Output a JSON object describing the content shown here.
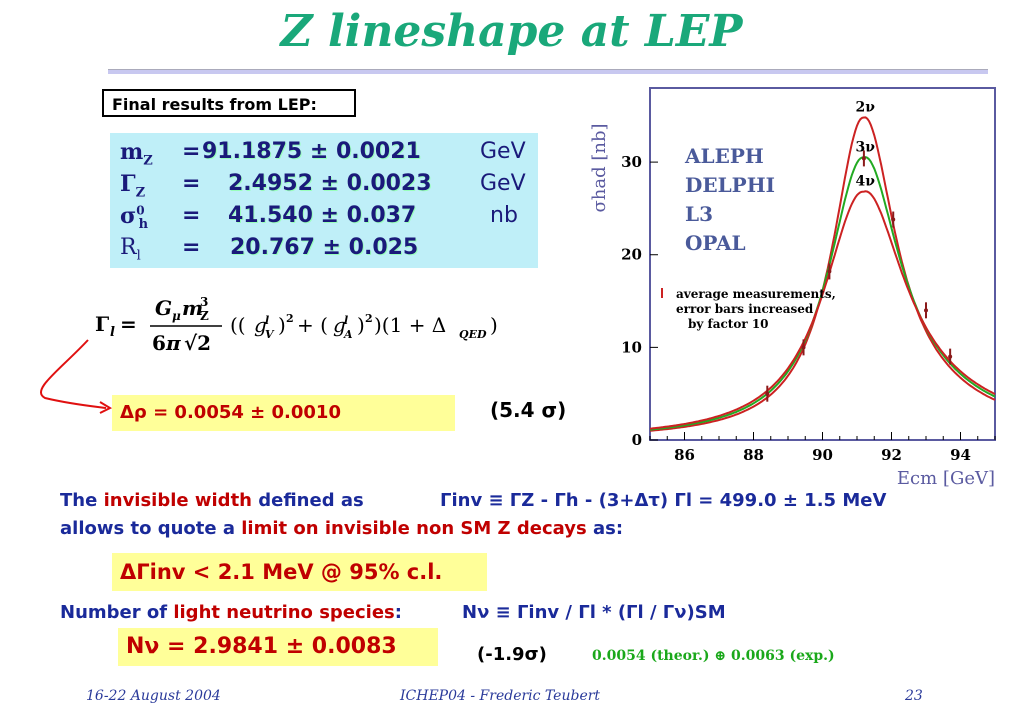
{
  "title": "Z lineshape at LEP",
  "final_label": "Final results from LEP:",
  "results": [
    {
      "sym": "mZ",
      "value": "91.1875 ± 0.0021",
      "unit": "GeV"
    },
    {
      "sym": "ΓZ",
      "value": "2.4952 ± 0.0023",
      "unit": "GeV"
    },
    {
      "sym": "σ0h",
      "value": "41.540 ± 0.037",
      "unit": "nb"
    },
    {
      "sym": "Rl",
      "value": "20.767 ± 0.025",
      "unit": ""
    }
  ],
  "delta_rho": "Δρ = 0.0054 ± 0.0010",
  "delta_rho_sigma": "(5.4 σ)",
  "invisible_line1": {
    "a": "The ",
    "b": "invisible width",
    "c": " defined as",
    "formula": "Γinv ≡ ΓZ - Γh - (3+Δτ) Γl = 499.0 ± 1.5 MeV"
  },
  "invisible_line2": {
    "a": "allows to quote a ",
    "b": "limit on invisible non SM Z decays",
    "c": " as:"
  },
  "delta_gamma": "ΔΓinv < 2.1 MeV @ 95% c.l.",
  "neutrino_line": {
    "a": "Number of ",
    "b": "light neutrino species",
    "c": ":",
    "formula": "Nν ≡ Γinv / Γl  *  (Γl / Γν)SM"
  },
  "n_nu": "Nν = 2.9841 ± 0.0083",
  "n_nu_sigma": "(-1.9σ)",
  "n_nu_errors": "0.0054 (theor.) ⊕ 0.0063 (exp.)",
  "footer": {
    "date": "16-22 August 2004",
    "conference": "ICHEP04 - Frederic Teubert",
    "page": "23"
  },
  "chart_data": {
    "type": "line",
    "xlabel": "Ecm [GeV]",
    "ylabel": "σhad [nb]",
    "xlim": [
      85,
      95
    ],
    "ylim": [
      0,
      38
    ],
    "xticks": [
      86,
      88,
      90,
      92,
      94
    ],
    "yticks": [
      0,
      10,
      20,
      30
    ],
    "experiments": [
      "ALEPH",
      "DELPHI",
      "L3",
      "OPAL"
    ],
    "legend_text": [
      "average measurements,",
      "error bars increased",
      "by factor 10"
    ],
    "colors": {
      "2ν": "#cc2222",
      "3ν": "#22aa22",
      "4ν": "#cc2222",
      "frame": "#5a5aa0"
    },
    "series": [
      {
        "name": "2ν",
        "peak": 34.8,
        "width": 2.2
      },
      {
        "name": "3ν",
        "peak": 30.5,
        "width": 2.4952
      },
      {
        "name": "4ν",
        "peak": 26.8,
        "width": 2.8
      }
    ],
    "measurements": [
      {
        "x": 88.4,
        "y": 5.0
      },
      {
        "x": 89.45,
        "y": 10.0
      },
      {
        "x": 90.2,
        "y": 18.2
      },
      {
        "x": 91.2,
        "y": 30.4
      },
      {
        "x": 92.05,
        "y": 23.8
      },
      {
        "x": 93.0,
        "y": 14.0
      },
      {
        "x": 93.7,
        "y": 9.0
      }
    ]
  }
}
